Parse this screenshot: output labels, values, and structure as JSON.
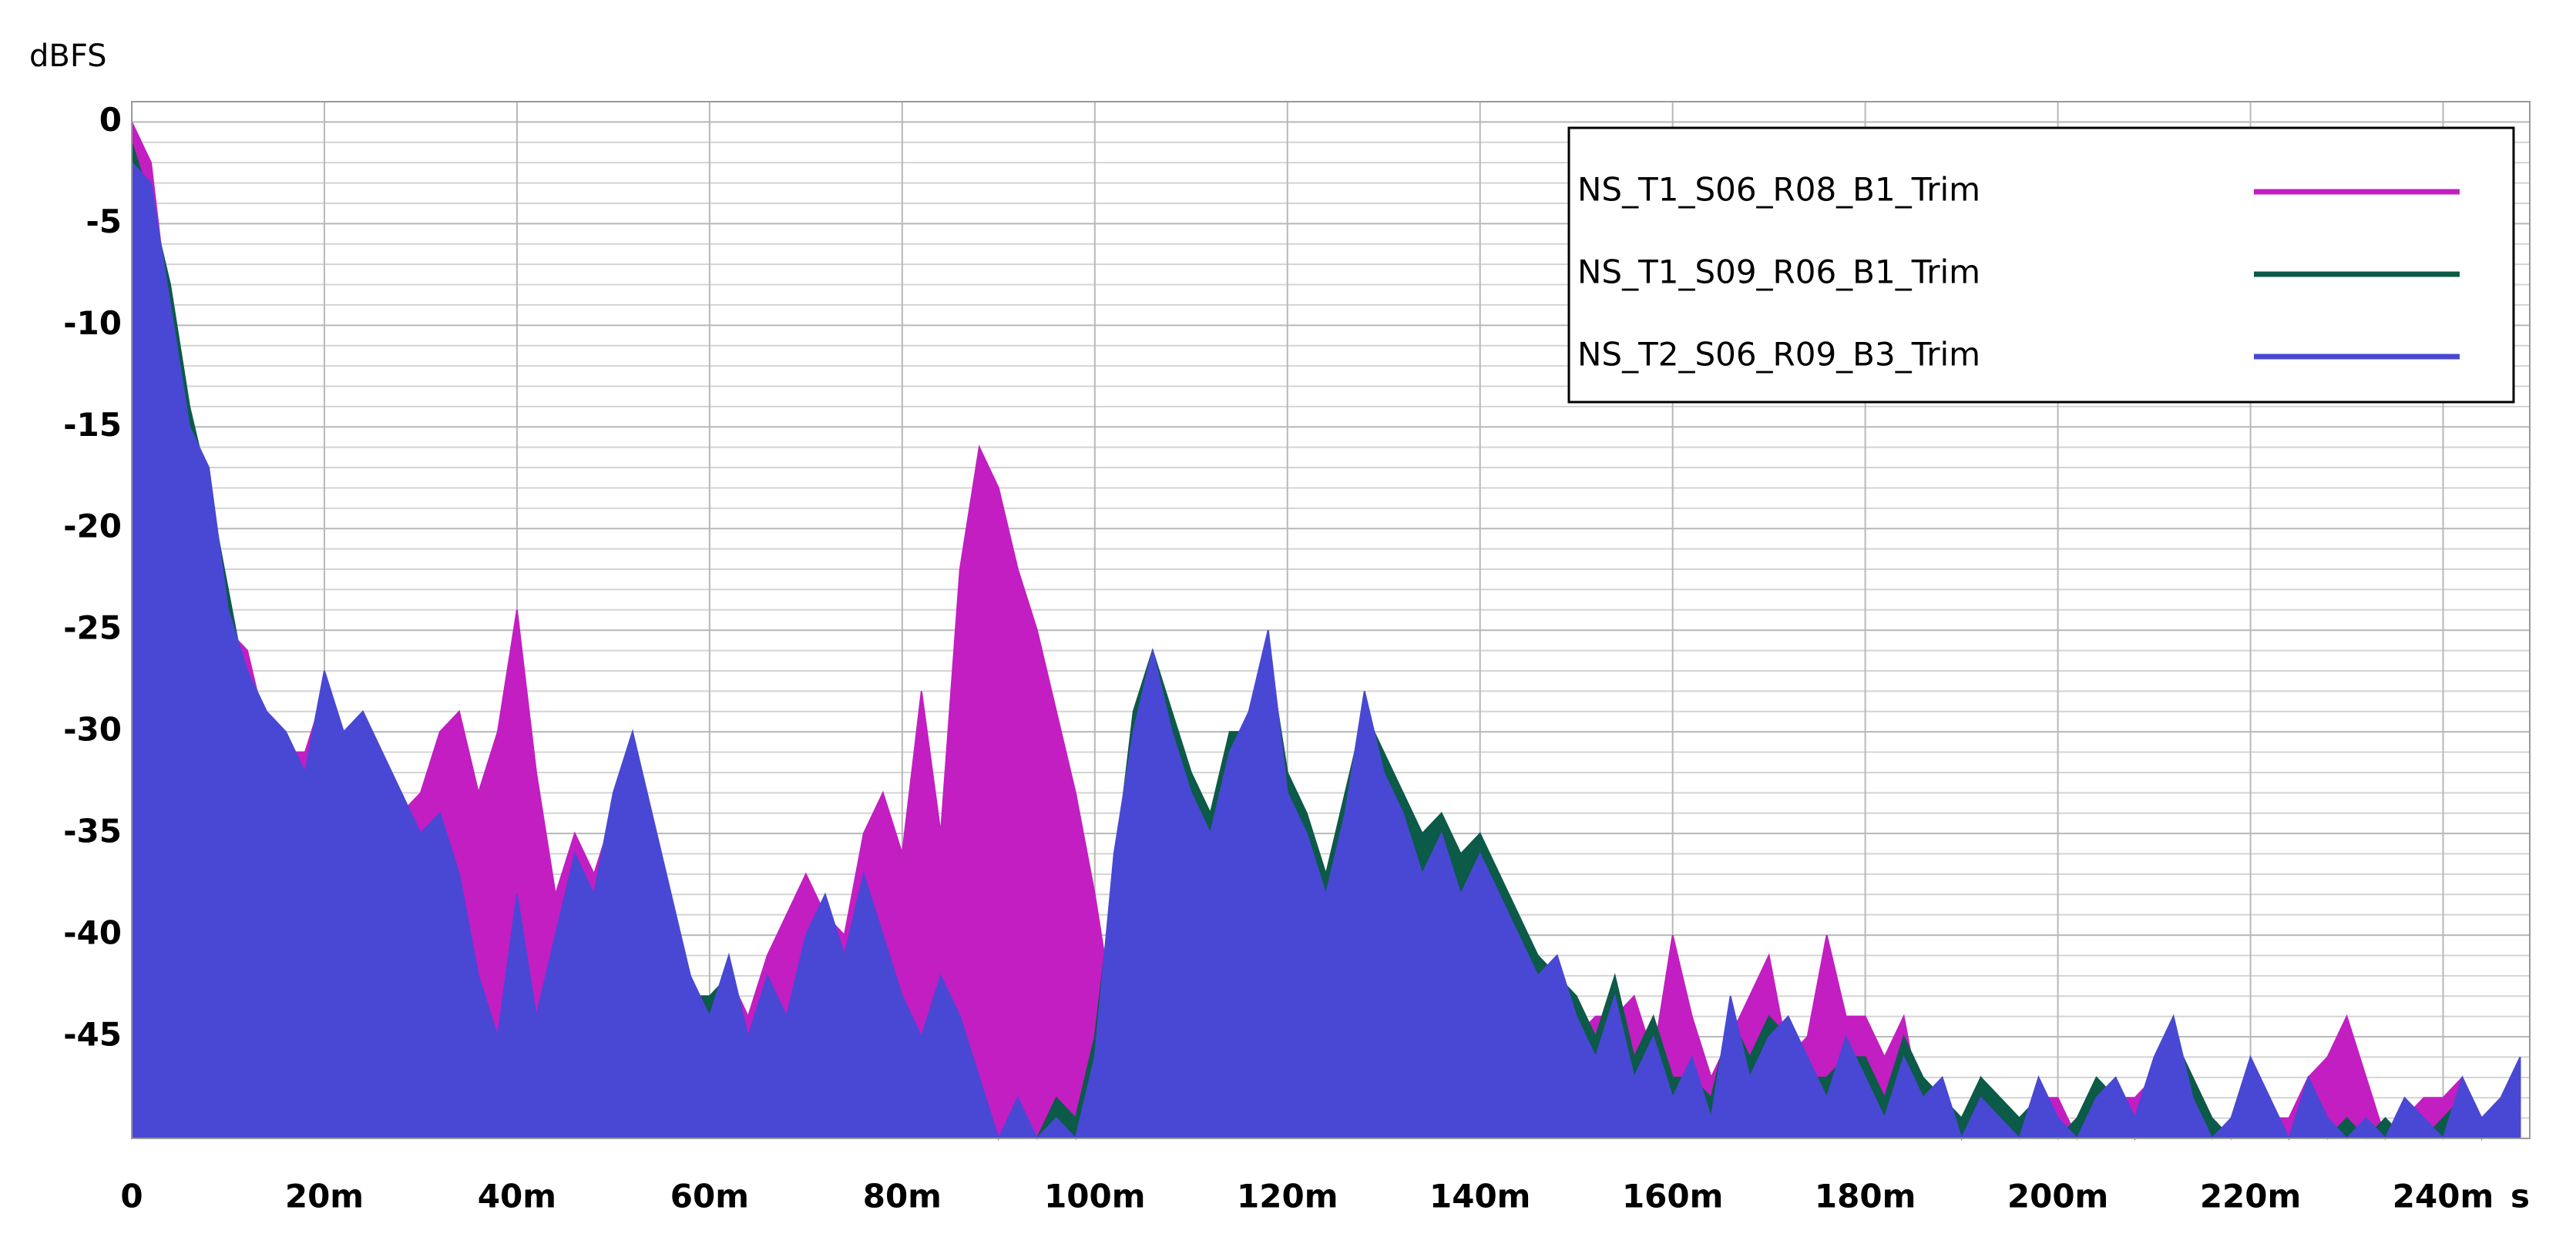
{
  "chart_data": {
    "type": "area",
    "y_label": "dBFS",
    "x_unit": "s",
    "xlim": [
      0,
      249
    ],
    "ylim": [
      -50,
      1
    ],
    "xticks": [
      0,
      {
        "value": 20,
        "label": "20m"
      },
      {
        "value": 40,
        "label": "40m"
      },
      {
        "value": 60,
        "label": "60m"
      },
      {
        "value": 80,
        "label": "80m"
      },
      {
        "value": 100,
        "label": "100m"
      },
      {
        "value": 120,
        "label": "120m"
      },
      {
        "value": 140,
        "label": "140m"
      },
      {
        "value": 160,
        "label": "160m"
      },
      {
        "value": 180,
        "label": "180m"
      },
      {
        "value": 200,
        "label": "200m"
      },
      {
        "value": 220,
        "label": "220m"
      },
      {
        "value": 240,
        "label": "240m"
      }
    ],
    "yticks": [
      0,
      -5,
      -10,
      -15,
      -20,
      -25,
      -30,
      -35,
      -40,
      -45
    ],
    "yminorticks": [
      -49,
      -48,
      -47,
      -46,
      -44,
      -43,
      -42,
      -41,
      -39,
      -38,
      -37,
      -36,
      -34,
      -33,
      -32,
      -31,
      -29,
      -28,
      -27,
      -26,
      -24,
      -23,
      -22,
      -21,
      -19,
      -18,
      -17,
      -16,
      -14,
      -13,
      -12,
      -11,
      -9,
      -8,
      -7,
      -6,
      -4,
      -3,
      -2,
      -1
    ],
    "grid": true,
    "legend": "upper right",
    "x": [
      0,
      2,
      4,
      6,
      8,
      10,
      12,
      14,
      16,
      18,
      20,
      22,
      24,
      26,
      28,
      30,
      32,
      34,
      36,
      38,
      40,
      42,
      44,
      46,
      48,
      50,
      52,
      54,
      56,
      58,
      60,
      62,
      64,
      66,
      68,
      70,
      72,
      74,
      76,
      78,
      80,
      82,
      84,
      86,
      88,
      90,
      92,
      94,
      96,
      98,
      100,
      102,
      104,
      106,
      108,
      110,
      112,
      114,
      116,
      118,
      120,
      122,
      124,
      126,
      128,
      130,
      132,
      134,
      136,
      138,
      140,
      142,
      144,
      146,
      148,
      150,
      152,
      154,
      156,
      158,
      160,
      162,
      164,
      166,
      168,
      170,
      172,
      174,
      176,
      178,
      180,
      182,
      184,
      186,
      188,
      190,
      192,
      194,
      196,
      198,
      200,
      202,
      204,
      206,
      208,
      210,
      212,
      214,
      216,
      218,
      220,
      222,
      224,
      226,
      228,
      230,
      232,
      234,
      236,
      238,
      240,
      242,
      244,
      246,
      248
    ],
    "series": [
      {
        "name": "NS_T1_S06_R08_B1_Trim",
        "color": "#c21ec2",
        "values": [
          0,
          -2,
          -10,
          -16,
          -18,
          -25,
          -26,
          -30,
          -31,
          -31,
          -28,
          -31,
          -30,
          -32,
          -34,
          -33,
          -30,
          -29,
          -33,
          -30,
          -24,
          -32,
          -38,
          -35,
          -37,
          -34,
          -32,
          -35,
          -39,
          -43,
          -45,
          -42,
          -44,
          -41,
          -39,
          -37,
          -39,
          -40,
          -35,
          -33,
          -36,
          -28,
          -35,
          -22,
          -16,
          -18,
          -22,
          -25,
          -29,
          -33,
          -38,
          -44,
          -36,
          -30,
          -32,
          -35,
          -36,
          -33,
          -30,
          -27,
          -34,
          -36,
          -39,
          -35,
          -30,
          -33,
          -35,
          -38,
          -36,
          -39,
          -38,
          -40,
          -42,
          -43,
          -42,
          -45,
          -44,
          -44,
          -43,
          -46,
          -40,
          -44,
          -47,
          -45,
          -43,
          -41,
          -46,
          -45,
          -40,
          -44,
          -44,
          -46,
          -44,
          -49,
          -48,
          -50,
          -47,
          -49,
          -49,
          -48,
          -48,
          -50,
          -49,
          -48,
          -48,
          -47,
          -45,
          -47,
          -49,
          -50,
          -47,
          -49,
          -49,
          -47,
          -46,
          -44,
          -47,
          -50,
          -49,
          -48,
          -48,
          -47,
          -50,
          -48,
          -47
        ]
      },
      {
        "name": "NS_T1_S09_R06_B1_Trim",
        "color": "#0c5a48",
        "values": [
          -1,
          -4,
          -8,
          -14,
          -18,
          -23,
          -28,
          -30,
          -31,
          -33,
          -28,
          -31,
          -30,
          -32,
          -34,
          -36,
          -35,
          -38,
          -43,
          -46,
          -39,
          -45,
          -41,
          -37,
          -39,
          -34,
          -31,
          -35,
          -39,
          -43,
          -43,
          -42,
          -46,
          -43,
          -45,
          -41,
          -39,
          -42,
          -38,
          -41,
          -44,
          -46,
          -43,
          -45,
          -48,
          -50,
          -49,
          -50,
          -48,
          -49,
          -45,
          -37,
          -29,
          -26,
          -29,
          -32,
          -34,
          -30,
          -30,
          -26,
          -32,
          -34,
          -37,
          -33,
          -29,
          -31,
          -33,
          -35,
          -34,
          -36,
          -35,
          -37,
          -39,
          -41,
          -42,
          -43,
          -45,
          -42,
          -46,
          -44,
          -47,
          -47,
          -48,
          -44,
          -46,
          -44,
          -45,
          -47,
          -47,
          -46,
          -46,
          -48,
          -45,
          -47,
          -48,
          -49,
          -47,
          -48,
          -49,
          -48,
          -50,
          -49,
          -47,
          -48,
          -50,
          -47,
          -45,
          -47,
          -49,
          -50,
          -47,
          -49,
          -50,
          -48,
          -50,
          -49,
          -50,
          -49,
          -50,
          -50,
          -49,
          -48,
          -50,
          -49,
          -47
        ]
      },
      {
        "name": "NS_T2_S06_R09_B3_Trim",
        "color": "#4848d4",
        "values": [
          -2,
          -3,
          -9,
          -15,
          -17,
          -24,
          -27,
          -29,
          -30,
          -32,
          -27,
          -30,
          -29,
          -31,
          -33,
          -35,
          -34,
          -37,
          -42,
          -45,
          -38,
          -44,
          -40,
          -36,
          -38,
          -33,
          -30,
          -34,
          -38,
          -42,
          -44,
          -41,
          -45,
          -42,
          -44,
          -40,
          -38,
          -41,
          -37,
          -40,
          -43,
          -45,
          -42,
          -44,
          -47,
          -50,
          -48,
          -50,
          -49,
          -50,
          -46,
          -36,
          -30,
          -26,
          -30,
          -33,
          -35,
          -31,
          -29,
          -25,
          -33,
          -35,
          -38,
          -34,
          -28,
          -32,
          -34,
          -37,
          -35,
          -38,
          -36,
          -38,
          -40,
          -42,
          -41,
          -44,
          -46,
          -43,
          -47,
          -45,
          -48,
          -46,
          -49,
          -43,
          -47,
          -45,
          -44,
          -46,
          -48,
          -45,
          -47,
          -49,
          -46,
          -48,
          -47,
          -50,
          -48,
          -49,
          -50,
          -47,
          -49,
          -50,
          -48,
          -47,
          -49,
          -46,
          -44,
          -48,
          -50,
          -49,
          -46,
          -48,
          -50,
          -47,
          -49,
          -50,
          -49,
          -50,
          -48,
          -49,
          -50,
          -47,
          -49,
          -48,
          -46
        ]
      }
    ]
  }
}
